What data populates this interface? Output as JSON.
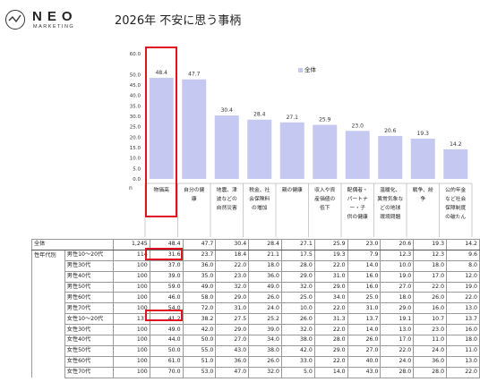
{
  "header": {
    "brand": "NEO",
    "brand_sub": "MARKETING",
    "title": "2026年 不安に思う事柄"
  },
  "legend_label": "全体",
  "colors": {
    "bar": "#c5c8f0",
    "highlight": "#e0141e",
    "grid": "#d9d9d9"
  },
  "chart_data": {
    "type": "bar",
    "title": "2026年 不安に思う事柄",
    "categories": [
      "物価高",
      "自分の健康",
      "地震、津波などの自然災害",
      "税金、社会保険料の増加",
      "親の健康",
      "収入や資産価値の低下",
      "配偶者・パートナー・子供の健康",
      "温暖化、異常気象などの地球環境問題",
      "戦争、紛争",
      "公的年金など社会保障制度の破たん"
    ],
    "category_lines": [
      [
        "物価高"
      ],
      [
        "自分の健",
        "康"
      ],
      [
        "地震、津",
        "波などの",
        "自然災害"
      ],
      [
        "税金、社",
        "会保険料",
        "の増加"
      ],
      [
        "親の健康"
      ],
      [
        "収入や資",
        "産価値の",
        "低下"
      ],
      [
        "配偶者・",
        "パートナ",
        "ー・子",
        "供の健康"
      ],
      [
        "温暖化、",
        "異常気象な",
        "どの地球",
        "環境問題"
      ],
      [
        "戦争、紛",
        "争"
      ],
      [
        "公的年金",
        "など社会",
        "保障制度",
        "の破たん"
      ]
    ],
    "series": [
      {
        "name": "全体",
        "values": [
          48.4,
          47.7,
          30.4,
          28.4,
          27.1,
          25.9,
          23.0,
          20.6,
          19.3,
          14.2
        ]
      }
    ],
    "value_labels": [
      "48.4",
      "47.7",
      "30.4",
      "28.4",
      "27.1",
      "25.9",
      "23.0",
      "20.6",
      "19.3",
      "14.2"
    ],
    "ylim": [
      0,
      60
    ],
    "yticks": [
      "0.0",
      "5.0",
      "10.0",
      "15.0",
      "20.0",
      "25.0",
      "30.0",
      "35.0",
      "40.0",
      "45.0",
      "50.0",
      "60.0"
    ],
    "ytick_values": [
      0,
      5,
      10,
      15,
      20,
      25,
      30,
      35,
      40,
      45,
      50,
      60
    ],
    "n_label": "n",
    "legend": "top-right",
    "grid": false
  },
  "table": {
    "group_label": "性年代別",
    "rows": [
      {
        "label": "全体",
        "n": "1,245",
        "values": [
          "48.4",
          "47.7",
          "30.4",
          "28.4",
          "27.1",
          "25.9",
          "23.0",
          "20.6",
          "19.3",
          "14.2"
        ]
      },
      {
        "label": "男性10～20代",
        "n": "114",
        "values": [
          "31.6",
          "23.7",
          "18.4",
          "21.1",
          "17.5",
          "19.3",
          "7.9",
          "12.3",
          "12.3",
          "9.6"
        ]
      },
      {
        "label": "男性30代",
        "n": "100",
        "values": [
          "37.0",
          "36.0",
          "22.0",
          "18.0",
          "28.0",
          "22.0",
          "14.0",
          "10.0",
          "18.0",
          "8.0"
        ]
      },
      {
        "label": "男性40代",
        "n": "100",
        "values": [
          "39.0",
          "35.0",
          "23.0",
          "36.0",
          "29.0",
          "31.0",
          "16.0",
          "19.0",
          "17.0",
          "12.0"
        ]
      },
      {
        "label": "男性50代",
        "n": "100",
        "values": [
          "59.0",
          "49.0",
          "32.0",
          "49.0",
          "32.0",
          "29.0",
          "16.0",
          "27.0",
          "22.0",
          "19.0"
        ]
      },
      {
        "label": "男性60代",
        "n": "100",
        "values": [
          "46.0",
          "58.0",
          "29.0",
          "26.0",
          "25.0",
          "34.0",
          "25.0",
          "18.0",
          "26.0",
          "22.0"
        ]
      },
      {
        "label": "男性70代",
        "n": "100",
        "values": [
          "54.0",
          "72.0",
          "31.0",
          "24.0",
          "10.0",
          "22.0",
          "31.0",
          "29.0",
          "16.0",
          "13.0"
        ]
      },
      {
        "label": "女性10～20代",
        "n": "131",
        "values": [
          "41.2",
          "38.2",
          "27.5",
          "25.2",
          "26.0",
          "31.3",
          "13.7",
          "19.1",
          "10.7",
          "13.7"
        ]
      },
      {
        "label": "女性30代",
        "n": "100",
        "values": [
          "49.0",
          "42.0",
          "29.0",
          "39.0",
          "32.0",
          "22.0",
          "14.0",
          "13.0",
          "23.0",
          "16.0"
        ]
      },
      {
        "label": "女性40代",
        "n": "100",
        "values": [
          "44.0",
          "50.0",
          "27.0",
          "34.0",
          "38.0",
          "28.0",
          "26.0",
          "17.0",
          "11.0",
          "18.0"
        ]
      },
      {
        "label": "女性50代",
        "n": "100",
        "values": [
          "50.0",
          "55.0",
          "43.0",
          "38.0",
          "42.0",
          "29.0",
          "27.0",
          "22.0",
          "24.0",
          "11.0"
        ]
      },
      {
        "label": "女性60代",
        "n": "100",
        "values": [
          "61.0",
          "51.0",
          "36.0",
          "26.0",
          "33.0",
          "22.0",
          "40.0",
          "24.0",
          "36.0",
          "13.0"
        ]
      },
      {
        "label": "女性70代",
        "n": "100",
        "values": [
          "70.0",
          "53.0",
          "47.0",
          "32.0",
          "5.0",
          "14.0",
          "43.0",
          "28.0",
          "28.0",
          "22.0"
        ]
      }
    ]
  }
}
